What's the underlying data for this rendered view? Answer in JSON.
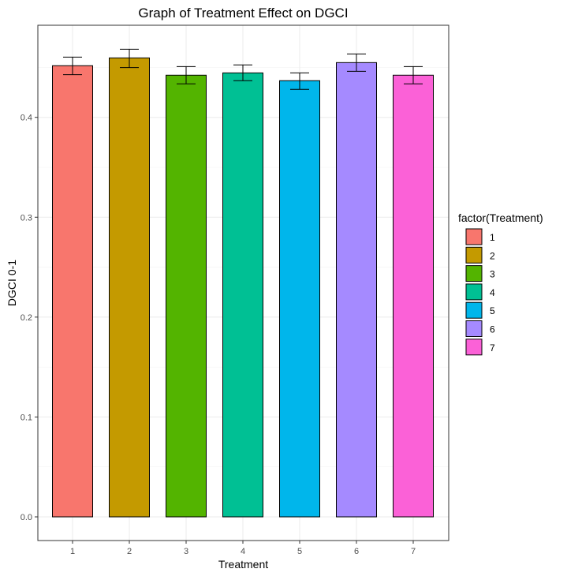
{
  "chart_data": {
    "type": "bar",
    "title": "Graph of Treatment Effect on DGCI",
    "xlabel": "Treatment",
    "ylabel": "DGCI 0-1",
    "categories": [
      "1",
      "2",
      "3",
      "4",
      "5",
      "6",
      "7"
    ],
    "values": [
      0.4517,
      0.4595,
      0.4422,
      0.4445,
      0.4367,
      0.4548,
      0.4422
    ],
    "error_low": [
      0.4427,
      0.4498,
      0.4335,
      0.4367,
      0.428,
      0.4461,
      0.4335
    ],
    "error_high": [
      0.4603,
      0.4682,
      0.4508,
      0.4525,
      0.4445,
      0.4635,
      0.4508
    ],
    "colors": [
      "#F8766D",
      "#C49A00",
      "#53B400",
      "#00C094",
      "#00B6EB",
      "#A58AFF",
      "#FB61D7"
    ],
    "yticks": [
      "0.0",
      "0.1",
      "0.2",
      "0.3",
      "0.4"
    ],
    "ytick_values": [
      0,
      0.1,
      0.2,
      0.3,
      0.4
    ],
    "ylim": [
      -0.0237,
      0.4922
    ],
    "grid": true,
    "legend": {
      "title": "factor(Treatment)",
      "entries": [
        "1",
        "2",
        "3",
        "4",
        "5",
        "6",
        "7"
      ],
      "placement": "right"
    }
  }
}
